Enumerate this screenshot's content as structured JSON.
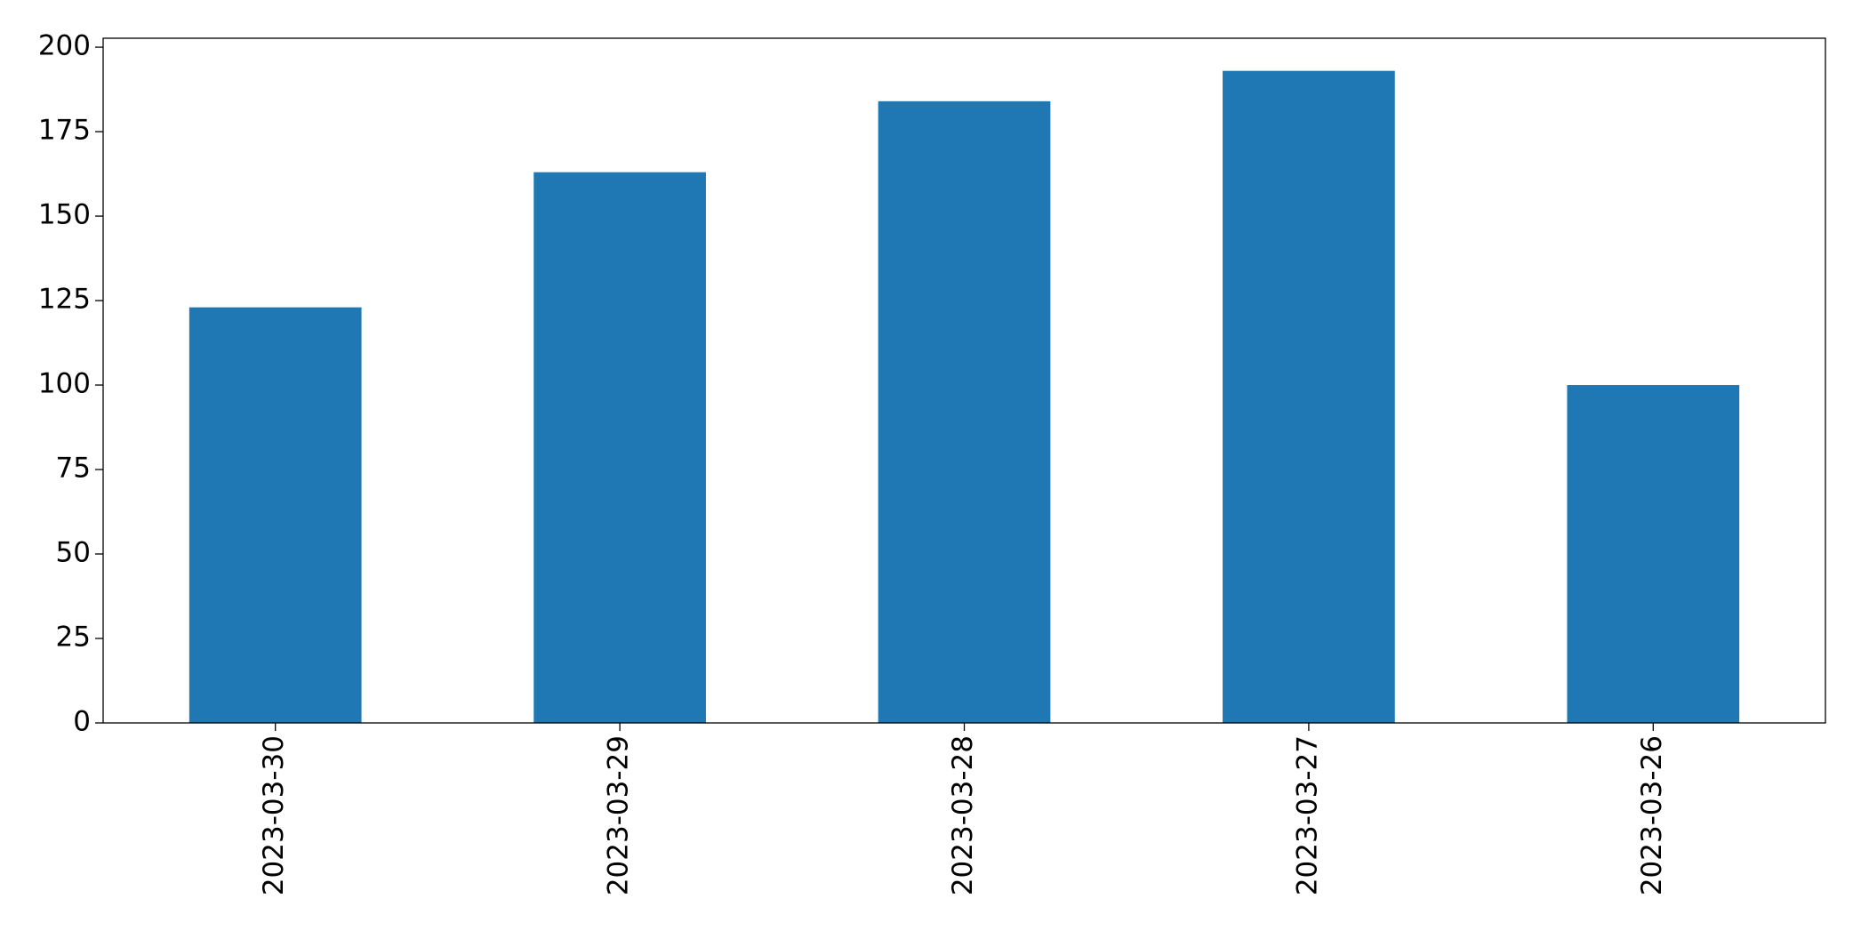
{
  "chart_data": {
    "type": "bar",
    "categories": [
      "2023-03-30",
      "2023-03-29",
      "2023-03-28",
      "2023-03-27",
      "2023-03-26"
    ],
    "values": [
      123,
      163,
      184,
      193,
      100
    ],
    "color": "#1f77b4",
    "ylim": [
      0,
      202.65
    ],
    "yticks": [
      0,
      25,
      50,
      75,
      100,
      125,
      150,
      175,
      200
    ],
    "grid": false
  }
}
